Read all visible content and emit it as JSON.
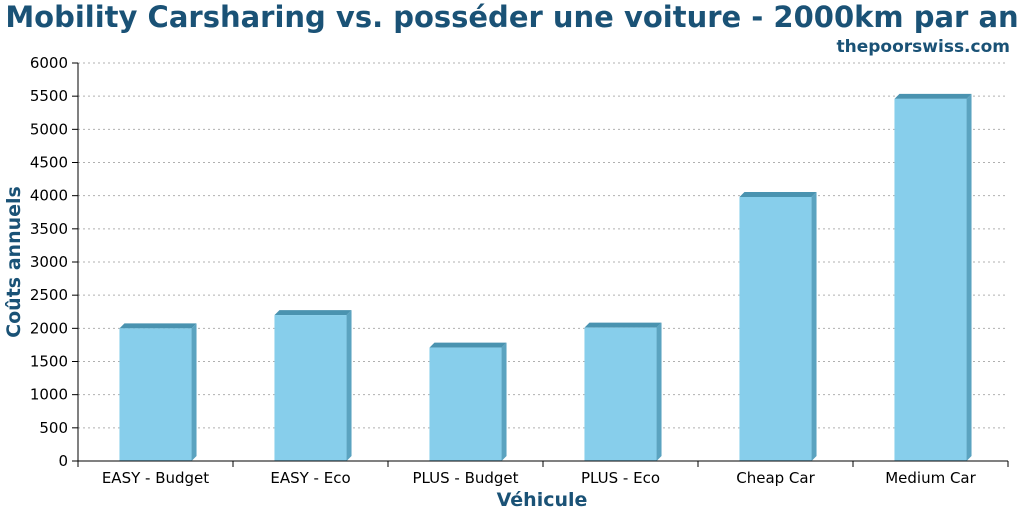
{
  "header": {
    "title": "Mobility Carsharing vs. posséder une voiture - 2000km par an",
    "site": "thepoorswiss.com"
  },
  "colors": {
    "bar_front": "#87ceeb",
    "bar_side": "#5ba3c0",
    "bar_top": "#4a93b0",
    "text_accent": "#1a5276"
  },
  "chart_data": {
    "type": "bar",
    "title": "Mobility Carsharing vs. posséder une voiture - 2000km par an",
    "xlabel": "Véhicule",
    "ylabel": "Coûts annuels",
    "categories": [
      "EASY - Budget",
      "EASY - Eco",
      "PLUS - Budget",
      "PLUS - Eco",
      "Cheap Car",
      "Medium Car"
    ],
    "values": [
      2000,
      2200,
      1710,
      2010,
      3980,
      5460
    ],
    "ylim": [
      0,
      6000
    ],
    "yticks": [
      0,
      500,
      1000,
      1500,
      2000,
      2500,
      3000,
      3500,
      4000,
      4500,
      5000,
      5500,
      6000
    ],
    "grid": true,
    "legend": "none"
  }
}
